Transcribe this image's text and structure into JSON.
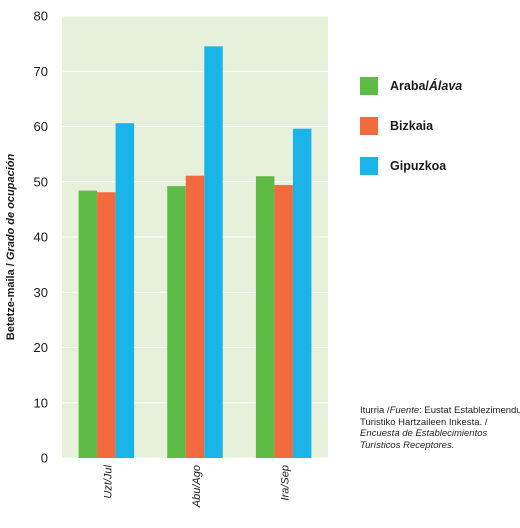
{
  "chart_data": {
    "type": "bar",
    "categories": [
      "Uzt/Jul",
      "Abu/Ago",
      "Ira/Sep"
    ],
    "series": [
      {
        "name": "Araba/Álava",
        "name_plain": "Araba/",
        "name_italic": "Álava",
        "color": "#5dbb46",
        "values": [
          48.4,
          49.2,
          51.0
        ]
      },
      {
        "name": "Bizkaia",
        "name_plain": "Bizkaia",
        "name_italic": "",
        "color": "#f26a3d",
        "values": [
          48.1,
          51.1,
          49.4
        ]
      },
      {
        "name": "Gipuzkoa",
        "name_plain": "Gipuzkoa",
        "name_italic": "",
        "color": "#1ab4e8",
        "values": [
          60.6,
          74.5,
          59.6
        ]
      }
    ],
    "ylabel": "Betetze-maila / Grado de ocupación",
    "ylabel_plain": "Betetze-maila / ",
    "ylabel_italic": "Grado de ocupación",
    "ylim": [
      0,
      80
    ],
    "yticks": [
      0,
      10,
      20,
      30,
      40,
      50,
      60,
      70,
      80
    ],
    "grid": true,
    "plot_background": "#e6f0da",
    "legend_position": "right"
  },
  "source": {
    "plain_1": "Iturria /",
    "italic_1": "Fuente",
    "plain_2": ": Eustat Establezimendu Turistiko Hartzaileen Inkesta. / ",
    "italic_2": "Encuesta de Establecimientos Turísticos Receptores."
  }
}
